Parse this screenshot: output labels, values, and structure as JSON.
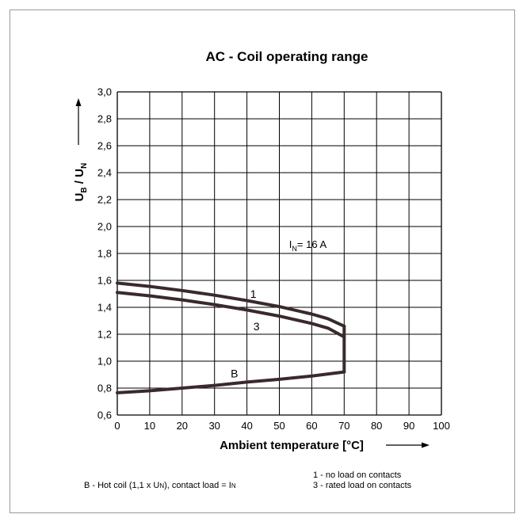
{
  "chart_data": {
    "type": "line",
    "title": "AC - Coil operating range",
    "xlabel": "Ambient temperature [°C]",
    "ylabel": {
      "main": "U",
      "sub1": "B",
      "mid": " / U",
      "sub2": "N"
    },
    "xlim": [
      0,
      100
    ],
    "ylim": [
      0.6,
      3.0
    ],
    "xticks": [
      0,
      10,
      20,
      30,
      40,
      50,
      60,
      70,
      80,
      90,
      100
    ],
    "yticks": [
      "0,6",
      "0,8",
      "1,0",
      "1,2",
      "1,4",
      "1,6",
      "1,8",
      "2,0",
      "2,2",
      "2,4",
      "2,6",
      "2,8",
      "3,0"
    ],
    "grid": true,
    "annotation": {
      "prefix": "I",
      "sub": "N",
      "text": "= 16 A",
      "x": 53,
      "y": 1.84
    },
    "series": [
      {
        "name": "1",
        "label_at": [
          41,
          1.47
        ],
        "points": [
          [
            0,
            1.58
          ],
          [
            10,
            1.555
          ],
          [
            20,
            1.525
          ],
          [
            30,
            1.49
          ],
          [
            40,
            1.45
          ],
          [
            50,
            1.405
          ],
          [
            60,
            1.35
          ],
          [
            65,
            1.315
          ],
          [
            70,
            1.26
          ]
        ]
      },
      {
        "name": "3",
        "label_at": [
          42,
          1.23
        ],
        "points": [
          [
            0,
            1.51
          ],
          [
            10,
            1.485
          ],
          [
            20,
            1.455
          ],
          [
            30,
            1.42
          ],
          [
            40,
            1.38
          ],
          [
            50,
            1.335
          ],
          [
            60,
            1.28
          ],
          [
            65,
            1.245
          ],
          [
            70,
            1.18
          ]
        ]
      },
      {
        "name": "B",
        "label_at": [
          35,
          0.88
        ],
        "points": [
          [
            0,
            0.765
          ],
          [
            10,
            0.78
          ],
          [
            20,
            0.8
          ],
          [
            30,
            0.82
          ],
          [
            40,
            0.845
          ],
          [
            50,
            0.865
          ],
          [
            60,
            0.89
          ],
          [
            70,
            0.92
          ]
        ]
      },
      {
        "name": "",
        "points": [
          [
            70,
            0.92
          ],
          [
            70,
            1.26
          ]
        ]
      }
    ],
    "footnotes": {
      "b_prefix": "B - Hot coil (1,1 x U",
      "b_sub1": "N",
      "b_mid": "), contact load = I",
      "b_sub2": "N",
      "line1": "1 - no load on contacts",
      "line3": "3 - rated load on contacts"
    },
    "colors": {
      "curve": "#3a2a2c",
      "grid": "#000000",
      "text": "#000000",
      "frame": "#9a9a9a"
    }
  }
}
